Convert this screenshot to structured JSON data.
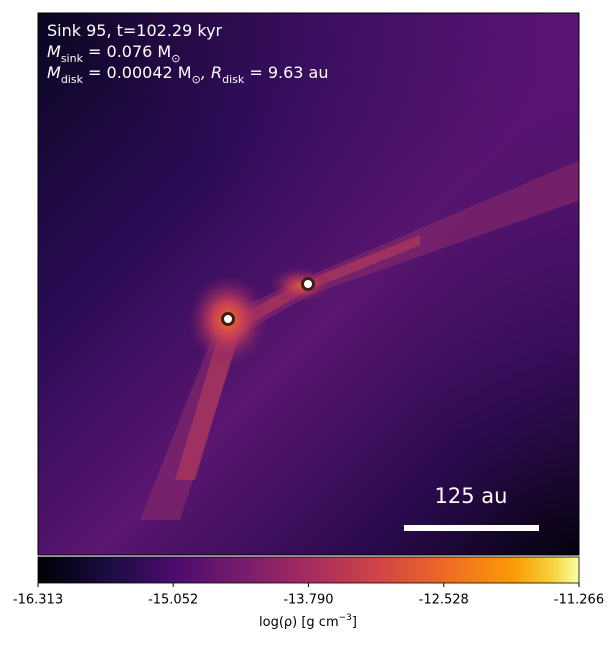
{
  "chart_data": {
    "type": "image",
    "annotation_lines": [
      [
        "Sink 95, t=102.29 kyr"
      ],
      [
        "M",
        "sink",
        " = 0.076 M",
        "⊙"
      ],
      [
        "M",
        "disk",
        " = 0.00042 M",
        "⊙",
        ", R",
        "disk",
        " = 9.63 au"
      ]
    ],
    "scale_bar_label": "125 au",
    "colorbar": {
      "clim": [
        -16.313,
        -11.266
      ],
      "ticks": [
        -16.313,
        -15.052,
        {
          "value": -13.79,
          "label": "-13.790"
        },
        -12.528,
        -11.266
      ],
      "label_parts": [
        "log(ρ) [g cm",
        "−3",
        "]"
      ]
    }
  }
}
